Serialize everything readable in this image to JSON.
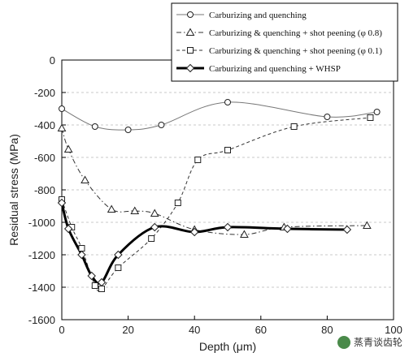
{
  "chart_data": {
    "type": "line",
    "xlabel": "Depth (μm)",
    "ylabel": "Residual stress (MPa)",
    "xlim": [
      0,
      100
    ],
    "ylim": [
      -1600,
      0
    ],
    "x_ticks": [
      "0",
      "20",
      "40",
      "60",
      "80",
      "100"
    ],
    "y_ticks": [
      "0",
      "-200",
      "-400",
      "-600",
      "-800",
      "-1000",
      "-1200",
      "-1400",
      "-1600"
    ],
    "grid": "horizontal dashed",
    "legend_position": "top-right",
    "series": [
      {
        "name": "Carburizing and quenching",
        "marker": "circle",
        "line_style": "solid-thin",
        "color": "#888888",
        "x": [
          0,
          10,
          20,
          30,
          50,
          80,
          95
        ],
        "y": [
          -300,
          -410,
          -430,
          -400,
          -260,
          -350,
          -320
        ]
      },
      {
        "name": "Carburizing & quenching + shot peening (φ 0.8)",
        "marker": "triangle",
        "line_style": "dash-dot",
        "color": "#333333",
        "x": [
          0,
          2,
          7,
          15,
          22,
          28,
          40,
          55,
          67,
          92
        ],
        "y": [
          -420,
          -550,
          -740,
          -920,
          -930,
          -945,
          -1045,
          -1075,
          -1030,
          -1020
        ]
      },
      {
        "name": "Carburizing & quenching + shot peening (φ 0.1)",
        "marker": "square",
        "line_style": "dashed",
        "color": "#333333",
        "x": [
          0,
          3,
          6,
          10,
          12,
          17,
          27,
          35,
          41,
          50,
          70,
          93
        ],
        "y": [
          -860,
          -1030,
          -1160,
          -1390,
          -1410,
          -1280,
          -1100,
          -880,
          -615,
          -555,
          -410,
          -355
        ]
      },
      {
        "name": "Carburizing and quenching + WHSP",
        "marker": "diamond",
        "line_style": "solid-bold",
        "color": "#000000",
        "x": [
          0,
          2,
          6,
          9,
          12,
          17,
          28,
          40,
          50,
          68,
          86
        ],
        "y": [
          -880,
          -1040,
          -1200,
          -1330,
          -1370,
          -1200,
          -1030,
          -1060,
          -1030,
          -1040,
          -1045
        ]
      }
    ]
  },
  "watermark": {
    "text": "蒸青谈齿轮",
    "icon": "wechat-logo-icon"
  }
}
